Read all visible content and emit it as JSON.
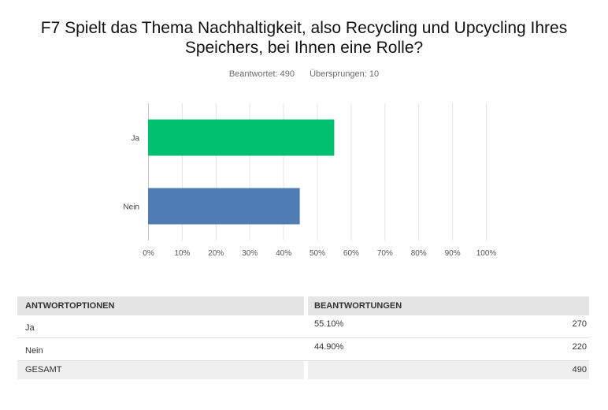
{
  "title": "F7 Spielt das Thema Nachhaltigkeit, also Recycling und Upcycling Ihres Speichers, bei Ihnen eine Rolle?",
  "answered": "Beantwortet: 490",
  "skipped": "Übersprungen: 10",
  "chart_data": {
    "type": "bar",
    "orientation": "horizontal",
    "categories": [
      "Ja",
      "Nein"
    ],
    "values": [
      55.1,
      44.9
    ],
    "colors": [
      "#00bf6f",
      "#507cb6"
    ],
    "xlim": [
      0,
      100
    ],
    "xticks": [
      "0%",
      "10%",
      "20%",
      "30%",
      "40%",
      "50%",
      "60%",
      "70%",
      "80%",
      "90%",
      "100%"
    ],
    "grid": true
  },
  "table": {
    "headers": [
      "ANTWORTOPTIONEN",
      "BEANTWORTUNGEN"
    ],
    "rows": [
      {
        "label": "Ja",
        "percent": "55.10%",
        "count": "270"
      },
      {
        "label": "Nein",
        "percent": "44.90%",
        "count": "220"
      }
    ],
    "total_label": "GESAMT",
    "total_count": "490"
  }
}
